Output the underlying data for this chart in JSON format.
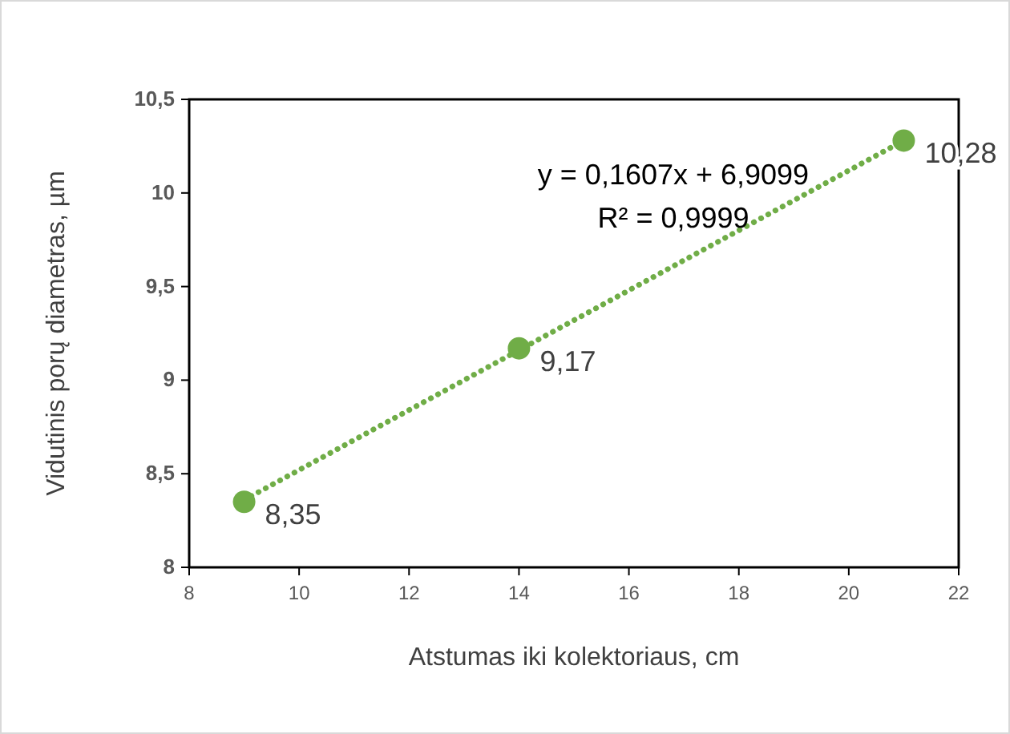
{
  "chart_data": {
    "type": "scatter",
    "xlabel": "Atstumas iki kolektoriaus, cm",
    "ylabel": "Vidutinis porų diametras, µm",
    "xlim": [
      8,
      22
    ],
    "xticks": [
      8,
      10,
      12,
      14,
      16,
      18,
      20,
      22
    ],
    "ylim": [
      8,
      10.5
    ],
    "yticks": [
      8,
      {
        "value": 8.5,
        "label": "8,5"
      },
      9,
      {
        "value": 9.5,
        "label": "9,5"
      },
      10,
      {
        "value": 10.5,
        "label": "10,5"
      }
    ],
    "marker": "circle",
    "grid": false,
    "series": [
      {
        "type": "line",
        "marker": "none",
        "color": "#70ad47",
        "line_style": "dotted",
        "x": [
          9,
          21
        ],
        "values": [
          8.36,
          10.28
        ]
      },
      {
        "color": "#70ad47",
        "x": [
          9,
          14,
          21
        ],
        "values": [
          8.35,
          9.17,
          10.28
        ],
        "value_labels": [
          "8,35",
          "9,17",
          "10,28"
        ]
      }
    ],
    "annotations": [
      "y = 0,1607x + 6,9099",
      "R² = 0,9999"
    ]
  }
}
